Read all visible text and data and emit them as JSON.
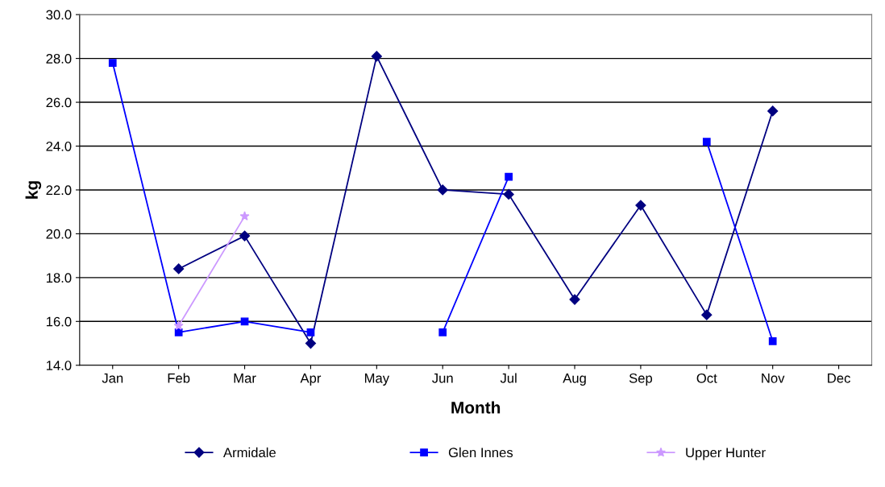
{
  "chart_data": {
    "type": "line",
    "xlabel": "Month",
    "ylabel": "kg",
    "categories": [
      "Jan",
      "Feb",
      "Mar",
      "Apr",
      "May",
      "Jun",
      "Jul",
      "Aug",
      "Sep",
      "Oct",
      "Nov",
      "Dec"
    ],
    "series": [
      {
        "name": "Armidale",
        "color": "#000080",
        "marker": "diamond",
        "values": [
          null,
          18.4,
          19.9,
          15.0,
          28.1,
          22.0,
          21.8,
          17.0,
          21.3,
          16.3,
          25.6,
          null
        ]
      },
      {
        "name": "Glen Innes",
        "color": "#0000ff",
        "marker": "square",
        "values": [
          27.8,
          15.5,
          16.0,
          15.5,
          null,
          15.5,
          22.6,
          null,
          null,
          24.2,
          15.1,
          null
        ]
      },
      {
        "name": "Upper Hunter",
        "color": "#cc99ff",
        "marker": "star",
        "values": [
          null,
          15.8,
          20.8,
          null,
          null,
          null,
          null,
          null,
          null,
          null,
          null,
          null
        ]
      }
    ],
    "ylim": [
      14,
      30
    ],
    "yticks": [
      {
        "value": 14,
        "label": "14.0"
      },
      {
        "value": 16,
        "label": "16.0"
      },
      {
        "value": 18,
        "label": "18.0"
      },
      {
        "value": 20,
        "label": "20.0"
      },
      {
        "value": 22,
        "label": "22.0"
      },
      {
        "value": 24,
        "label": "24.0"
      },
      {
        "value": 26,
        "label": "26.0"
      },
      {
        "value": 28,
        "label": "28.0"
      },
      {
        "value": 30,
        "label": "30.0"
      }
    ],
    "grid": "y",
    "legend": "bottom",
    "line_style": "solid"
  }
}
